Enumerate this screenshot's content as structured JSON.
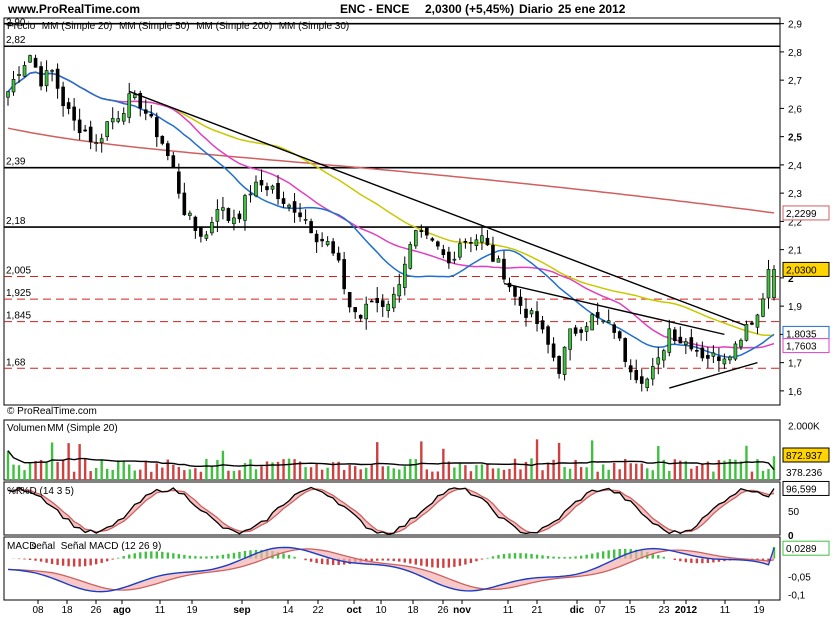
{
  "header": {
    "site": "www.ProRealTime.com",
    "symbol": "ENC - ENCE",
    "price": "2,0300 (+5,45%)",
    "period": "Diario",
    "date": "25 ene 2012"
  },
  "watermark": "© ProRealTime.com",
  "price_panel": {
    "legend": [
      {
        "text": "Precio",
        "color": "#000000"
      },
      {
        "text": "MM (Simple 20)",
        "color": "#1f6fd0"
      },
      {
        "text": "MM (Simple 50)",
        "color": "#c8c800"
      },
      {
        "text": "MM (Simple 200)",
        "color": "#d06060"
      },
      {
        "text": "MM (Simple 30)",
        "color": "#e040c0"
      }
    ],
    "top_value": "2,90",
    "y_ticks": [
      "2,9",
      "2,8",
      "2,7",
      "2,6",
      "2,5",
      "2,4",
      "2,3",
      "2,2",
      "2,1",
      "2",
      "1,9",
      "1,8",
      "1,7",
      "1,6"
    ],
    "solid_levels": [
      {
        "value": 2.82,
        "label": "2,82"
      },
      {
        "value": 2.39,
        "label": "2,39"
      },
      {
        "value": 2.18,
        "label": "2,18"
      }
    ],
    "dashed_levels": [
      {
        "value": 2.005,
        "label": "2,005"
      },
      {
        "value": 1.925,
        "label": "1,925"
      },
      {
        "value": 1.845,
        "label": "1,845"
      },
      {
        "value": 1.68,
        "label": "1,68"
      }
    ],
    "value_tags": [
      {
        "text": "2,2299",
        "value": 2.2299,
        "color": "#d06060"
      },
      {
        "text": "2,0300",
        "value": 2.03,
        "color": "#000000",
        "fill": "#ffd400"
      },
      {
        "text": "1,8035",
        "value": 1.8035,
        "color": "#1f6fd0"
      },
      {
        "text": "1,7603",
        "value": 1.7603,
        "color": "#e040c0"
      }
    ]
  },
  "volume_panel": {
    "legend": [
      {
        "text": "Volumen",
        "color": "#000000"
      },
      {
        "text": "MM (Simple 20)",
        "color": "#000000"
      }
    ],
    "y_ticks": [
      "2.000K"
    ],
    "tags": [
      {
        "text": "872.937",
        "color": "#000000",
        "fill": "#ffd400"
      },
      {
        "text": "378.236",
        "color": "#000000"
      }
    ]
  },
  "stoch_panel": {
    "legend": [
      {
        "text": "%K",
        "color": "#000000"
      },
      {
        "text": "%D (14 3 5)",
        "color": "#d06060"
      }
    ],
    "y_ticks": [
      "100",
      "50",
      "0"
    ],
    "tag": "96,599"
  },
  "macd_panel": {
    "legend": [
      {
        "text": "MACD",
        "color": "#1a3cc8"
      },
      {
        "text": "señal",
        "color": "#d06060"
      },
      {
        "text": "Señal MACD (12 26 9)",
        "color": "#000000"
      }
    ],
    "y_ticks": [
      "-0,05",
      "-0,1"
    ],
    "tag": "0,0289"
  },
  "x_axis": {
    "labels": [
      {
        "text": "08",
        "bold": false
      },
      {
        "text": "18",
        "bold": false
      },
      {
        "text": "26",
        "bold": false
      },
      {
        "text": "ago",
        "bold": true
      },
      {
        "text": "11",
        "bold": false
      },
      {
        "text": "19",
        "bold": false
      },
      {
        "text": "sep",
        "bold": true
      },
      {
        "text": "14",
        "bold": false
      },
      {
        "text": "22",
        "bold": false
      },
      {
        "text": "oct",
        "bold": true
      },
      {
        "text": "10",
        "bold": false
      },
      {
        "text": "18",
        "bold": false
      },
      {
        "text": "26",
        "bold": false
      },
      {
        "text": "nov",
        "bold": true
      },
      {
        "text": "11",
        "bold": false
      },
      {
        "text": "21",
        "bold": false
      },
      {
        "text": "dic",
        "bold": true
      },
      {
        "text": "07",
        "bold": false
      },
      {
        "text": "15",
        "bold": false
      },
      {
        "text": "23",
        "bold": false
      },
      {
        "text": "2012",
        "bold": true
      },
      {
        "text": "11",
        "bold": false
      },
      {
        "text": "19",
        "bold": false
      }
    ]
  },
  "chart_data": {
    "type": "candlestick",
    "title": "ENC - ENCE",
    "period": "Diario",
    "ylim": [
      1.55,
      2.92
    ],
    "solid_levels": [
      2.82,
      2.39,
      2.18
    ],
    "dashed_levels": [
      2.005,
      1.925,
      1.845,
      1.68
    ],
    "close_anchors": [
      [
        0,
        2.66
      ],
      [
        2,
        2.74
      ],
      [
        4,
        2.79
      ],
      [
        6,
        2.7
      ],
      [
        8,
        2.73
      ],
      [
        10,
        2.62
      ],
      [
        12,
        2.55
      ],
      [
        14,
        2.52
      ],
      [
        16,
        2.47
      ],
      [
        18,
        2.55
      ],
      [
        20,
        2.58
      ],
      [
        22,
        2.63
      ],
      [
        24,
        2.62
      ],
      [
        26,
        2.55
      ],
      [
        28,
        2.48
      ],
      [
        30,
        2.38
      ],
      [
        32,
        2.24
      ],
      [
        34,
        2.17
      ],
      [
        36,
        2.15
      ],
      [
        38,
        2.26
      ],
      [
        40,
        2.21
      ],
      [
        42,
        2.23
      ],
      [
        44,
        2.31
      ],
      [
        46,
        2.33
      ],
      [
        48,
        2.32
      ],
      [
        50,
        2.25
      ],
      [
        52,
        2.25
      ],
      [
        54,
        2.21
      ],
      [
        56,
        2.15
      ],
      [
        58,
        2.12
      ],
      [
        60,
        2.04
      ],
      [
        62,
        1.9
      ],
      [
        64,
        1.86
      ],
      [
        66,
        1.92
      ],
      [
        68,
        1.91
      ],
      [
        70,
        1.93
      ],
      [
        72,
        2.06
      ],
      [
        74,
        2.15
      ],
      [
        76,
        2.13
      ],
      [
        78,
        2.1
      ],
      [
        80,
        2.05
      ],
      [
        82,
        2.13
      ],
      [
        84,
        2.14
      ],
      [
        86,
        2.14
      ],
      [
        88,
        2.07
      ],
      [
        90,
        2.02
      ],
      [
        92,
        1.93
      ],
      [
        94,
        1.88
      ],
      [
        96,
        1.84
      ],
      [
        98,
        1.76
      ],
      [
        100,
        1.68
      ],
      [
        102,
        1.8
      ],
      [
        104,
        1.83
      ],
      [
        106,
        1.86
      ],
      [
        108,
        1.84
      ],
      [
        110,
        1.82
      ],
      [
        112,
        1.72
      ],
      [
        114,
        1.66
      ],
      [
        116,
        1.64
      ],
      [
        118,
        1.7
      ],
      [
        120,
        1.82
      ],
      [
        122,
        1.78
      ],
      [
        124,
        1.77
      ],
      [
        126,
        1.73
      ],
      [
        128,
        1.72
      ],
      [
        130,
        1.73
      ],
      [
        132,
        1.76
      ],
      [
        134,
        1.84
      ],
      [
        136,
        1.87
      ],
      [
        137,
        1.93
      ],
      [
        138,
        2.03
      ]
    ],
    "last_close": 2.03,
    "change_pct": 5.45,
    "ma20_last": 1.8035,
    "ma30_last": 1.7603,
    "ma200_last": 2.2299,
    "volume_last": 872937,
    "volume_ma20_last": 378236,
    "stoch_last": 96.599,
    "macd_last": 0.0289,
    "x_tick_labels": [
      "08",
      "18",
      "26",
      "ago",
      "11",
      "19",
      "sep",
      "14",
      "22",
      "oct",
      "10",
      "18",
      "26",
      "nov",
      "11",
      "21",
      "dic",
      "07",
      "15",
      "23",
      "2012",
      "11",
      "19"
    ],
    "series": [
      {
        "name": "MM (Simple 20)",
        "last": 1.8035
      },
      {
        "name": "MM (Simple 50)"
      },
      {
        "name": "MM (Simple 200)",
        "last": 2.2299
      },
      {
        "name": "MM (Simple 30)",
        "last": 1.7603
      }
    ]
  }
}
